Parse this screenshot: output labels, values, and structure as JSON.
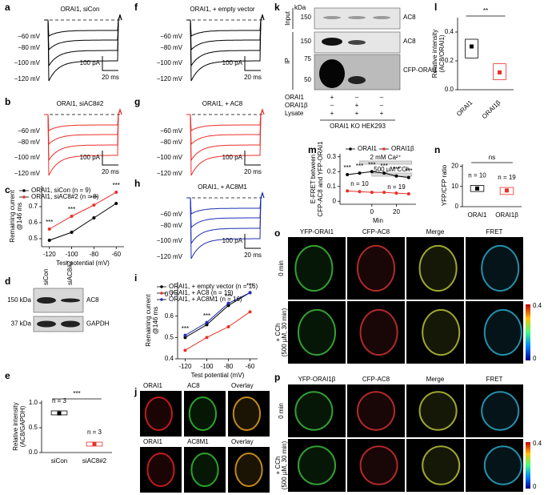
{
  "chart_data": [
    {
      "type": "line",
      "x": [
        -120,
        -100,
        -80,
        -60
      ],
      "xlim": [
        -127,
        -53
      ],
      "xticks": [
        -120,
        -100,
        -80,
        -60
      ],
      "ylim": [
        0.45,
        0.83
      ],
      "yticks": [
        0.5,
        0.6,
        0.7
      ],
      "xlabel": "Test potential (mV)",
      "ylabel": [
        "Remaining current",
        "@146 ms"
      ],
      "series": [
        {
          "name": "ORAI1, siCon (n = 9)",
          "color": "#000000",
          "values": [
            0.49,
            0.54,
            0.63,
            0.72
          ]
        },
        {
          "name": "ORAI1, siAC8#2 (n = 8)",
          "color": "#e8302a",
          "values": [
            0.56,
            0.64,
            0.71,
            0.79
          ]
        }
      ],
      "annotations": [
        "***",
        "***",
        "***",
        "***"
      ]
    },
    {
      "type": "line",
      "x": [
        -120,
        -100,
        -80,
        -60
      ],
      "xlim": [
        -127,
        -53
      ],
      "xticks": [
        -120,
        -100,
        -80,
        -60
      ],
      "ylim": [
        0.4,
        0.76
      ],
      "yticks": [
        0.4,
        0.5,
        0.6,
        0.7
      ],
      "xlabel": "Test potential (mV)",
      "ylabel": [
        "Remaining current",
        "@146 ms"
      ],
      "series": [
        {
          "name": "ORAI1, + empty vector (n = 16)",
          "color": "#000000",
          "values": [
            0.5,
            0.56,
            0.65,
            0.71
          ]
        },
        {
          "name": "ORAI1, + AC8 (n = 19)",
          "color": "#e8302a",
          "values": [
            0.44,
            0.5,
            0.55,
            0.62
          ]
        },
        {
          "name": "ORAI1, + AC8M1 (n = 16)",
          "color": "#1f2fb4",
          "values": [
            0.51,
            0.57,
            0.66,
            0.71
          ]
        }
      ],
      "annotations": [
        "***",
        "***",
        "***",
        "***"
      ]
    },
    {
      "type": "line",
      "x": [
        -20,
        -10,
        0,
        10,
        20,
        30
      ],
      "xlim": [
        -26,
        36
      ],
      "xticks": [
        0,
        20
      ],
      "ylim": [
        -0.02,
        0.32
      ],
      "yticks": [
        0,
        0.1,
        0.2,
        0.3
      ],
      "xlabel": "Min",
      "ylabel": [
        "E-FRET between",
        "CFP-AC8 and YFP-ORAI1"
      ],
      "series": [
        {
          "name": "ORAI1",
          "color": "#000000",
          "values": [
            0.18,
            0.19,
            0.2,
            0.19,
            0.17,
            0.16
          ]
        },
        {
          "name": "ORAI1β",
          "color": "#e8302a",
          "values": [
            0.07,
            0.065,
            0.06,
            0.06,
            0.055,
            0.05
          ]
        }
      ],
      "annotations": [
        "***",
        "***",
        "***",
        "***",
        "***",
        "***"
      ],
      "n_labels": [
        "n = 10",
        "n = 19"
      ],
      "bars": [
        "2 mM Ca²⁺",
        "500 µM CCh"
      ]
    },
    {
      "type": "box",
      "categories": [
        "siCon",
        "siAC8#2"
      ],
      "colors": [
        "#000000",
        "#e8302a"
      ],
      "values": [
        0.79,
        0.17
      ],
      "q1": [
        0.76,
        0.13
      ],
      "q3": [
        0.84,
        0.21
      ],
      "ylim": [
        0,
        1.05
      ],
      "yticks": [
        {
          "value": 0,
          "label": "0.0"
        },
        0.5,
        {
          "value": 1,
          "label": "1.0"
        }
      ],
      "ylabel": [
        "Relative intensity",
        "(AC8/GAPDH)"
      ],
      "annotations": [
        "n = 3",
        "n = 3",
        "***"
      ]
    },
    {
      "type": "box",
      "categories": [
        "ORAI1",
        "ORAI1β"
      ],
      "colors": [
        "#000000",
        "#e8302a"
      ],
      "values": [
        0.3,
        0.12
      ],
      "q1": [
        0.22,
        0.07
      ],
      "q3": [
        0.35,
        0.18
      ],
      "ylim": [
        0,
        0.5
      ],
      "yticks": [
        {
          "value": 0,
          "label": "0.0"
        },
        0.2,
        0.4
      ],
      "ylabel": [
        "Relative intensity",
        "(AC8/ORAI1)"
      ],
      "annotations": [
        "**"
      ]
    },
    {
      "type": "box",
      "categories": [
        "ORAI1",
        "ORAI1β"
      ],
      "colors": [
        "#000000",
        "#e8302a"
      ],
      "values": [
        9,
        8
      ],
      "q1": [
        7.5,
        6
      ],
      "q3": [
        10.5,
        9.5
      ],
      "ylim": [
        0,
        21
      ],
      "yticks": [
        0,
        10,
        20
      ],
      "ylabel": [
        "YFP/CFP ratio"
      ],
      "annotations": [
        "n = 10",
        "n = 19",
        "ns"
      ]
    }
  ],
  "figure": {
    "panel_letters": [
      "a",
      "b",
      "c",
      "d",
      "e",
      "f",
      "g",
      "h",
      "i",
      "j",
      "k",
      "l",
      "m",
      "n",
      "o",
      "p"
    ],
    "traces": [
      {
        "title": "ORAI1, siCon",
        "color": "#000000",
        "voltages": [
          "−60 mV",
          "−80 mV",
          "−100 mV",
          "−120 mV"
        ],
        "scale_current": "100 pA",
        "scale_time": "20 ms"
      },
      {
        "title": "ORAI1, siAC8#2",
        "color": "#e8302a",
        "voltages": [
          "−60 mV",
          "−80 mV",
          "−100 mV",
          "−120 mV"
        ],
        "scale_current": "100 pA",
        "scale_time": "20 ms"
      },
      {
        "title": "ORAI1, + empty vector",
        "color": "#000000",
        "voltages": [
          "−60 mV",
          "−80 mV",
          "−100 mV",
          "−120 mV"
        ],
        "scale_current": "100 pA",
        "scale_time": "20 ms"
      },
      {
        "title": "ORAI1, + AC8",
        "color": "#e8302a",
        "voltages": [
          "−60 mV",
          "−80 mV",
          "−100 mV",
          "−120 mV"
        ],
        "scale_current": "100 pA",
        "scale_time": "20 ms"
      },
      {
        "title": "ORAI1, + AC8M1",
        "color": "#1f2fb4",
        "voltages": [
          "−60 mV",
          "−80 mV",
          "−100 mV",
          "−120 mV"
        ],
        "scale_current": "100 pA",
        "scale_time": "20 ms"
      }
    ],
    "blot_d": {
      "lanes": [
        "siCon",
        "siAC8#2"
      ],
      "markers": [
        "150 kDa",
        "37 kDa"
      ],
      "bands": [
        "AC8",
        "GAPDH"
      ]
    },
    "blot_k": {
      "kda": "kDa",
      "markers": [
        "150",
        "150",
        "75",
        "50"
      ],
      "sections": [
        "Input",
        "IP"
      ],
      "bands": [
        "AC8",
        "AC8",
        "CFP-ORAI1"
      ],
      "rows": [
        "ORAI1",
        "ORAI1β",
        "Lysate"
      ],
      "signs": [
        [
          "+",
          "–",
          "–"
        ],
        [
          "–",
          "+",
          "–"
        ],
        [
          "+",
          "+",
          "+"
        ]
      ],
      "cell_line": "ORAI1 KO HEK293"
    },
    "micro_j": {
      "rows": [
        [
          "ORAI1",
          "AC8",
          "Overlay"
        ],
        [
          "ORAI1",
          "AC8M1",
          "Overlay"
        ]
      ]
    },
    "micro_o": {
      "columns": [
        "YFP-ORAI1",
        "CFP-AC8",
        "Merge",
        "FRET"
      ],
      "rows": [
        [
          "0 min"
        ],
        [
          "+ CCh",
          "(500 µM, 30 min)"
        ]
      ],
      "scale": [
        "0.4",
        "0"
      ]
    },
    "micro_p": {
      "columns": [
        "YFP-ORAI1β",
        "CFP-AC8",
        "Merge",
        "FRET"
      ],
      "rows": [
        [
          "0 min"
        ],
        [
          "+ CCh",
          "(500 µM, 30 min)"
        ]
      ],
      "scale": [
        "0.4",
        "0"
      ]
    }
  }
}
